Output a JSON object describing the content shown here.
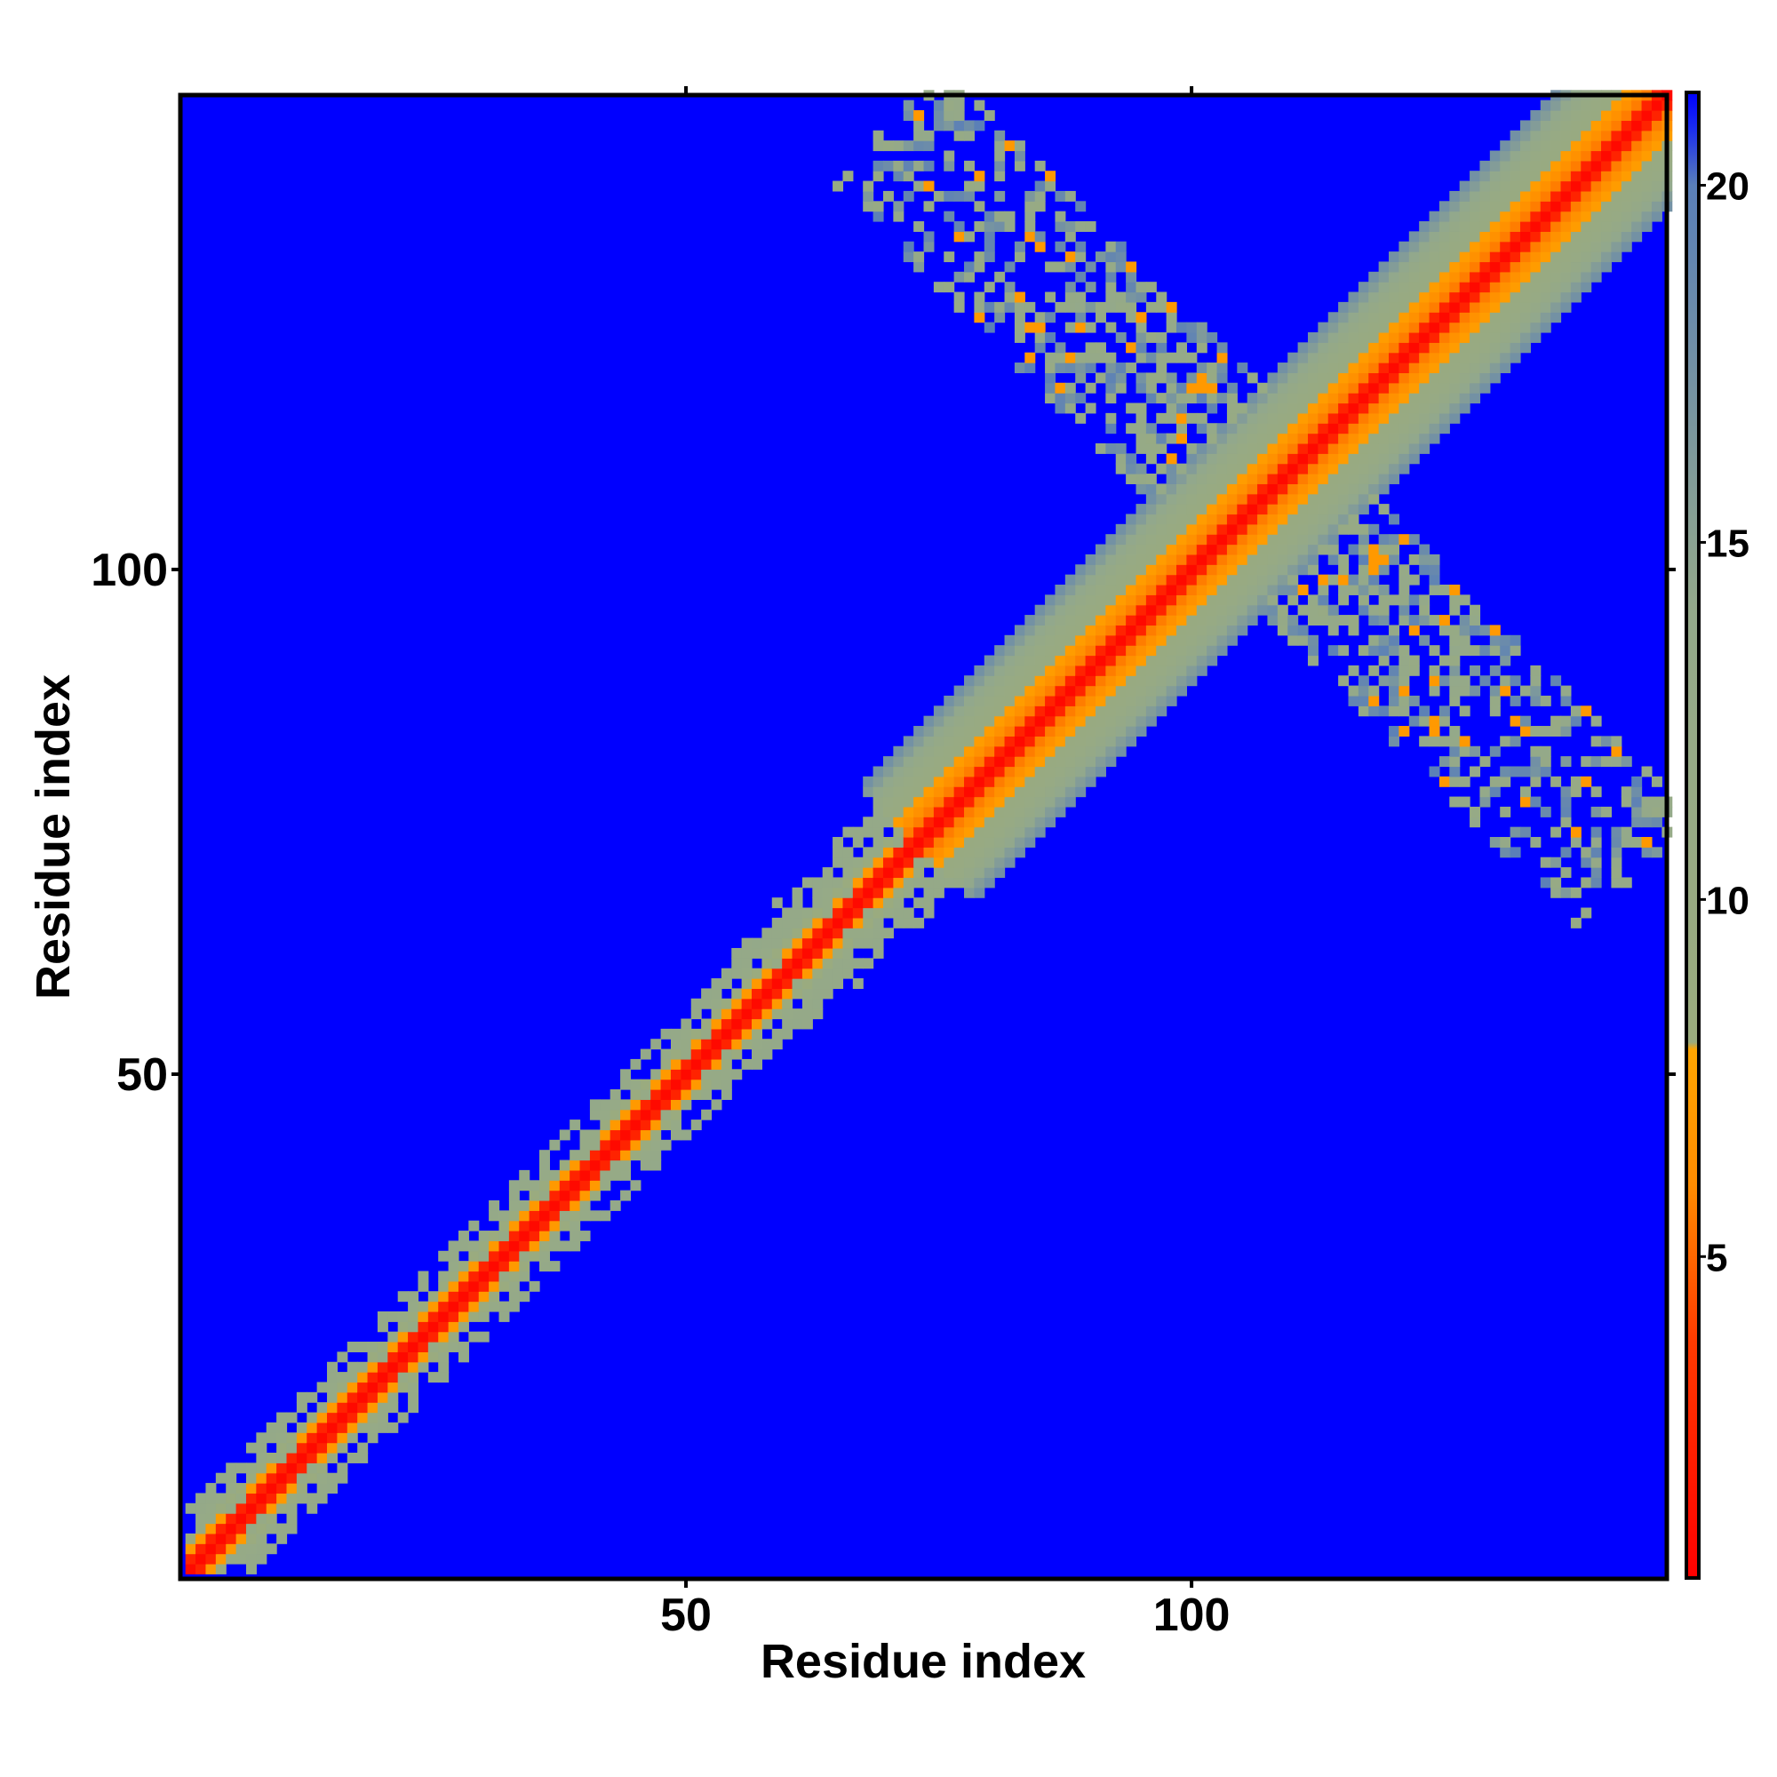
{
  "chart_data": {
    "type": "heatmap",
    "xlabel": "Residue index",
    "ylabel": "Residue index",
    "n_residues": 147,
    "xlim": [
      1,
      147
    ],
    "ylim": [
      1,
      147
    ],
    "x_ticks": [
      50,
      100
    ],
    "y_ticks": [
      50,
      100
    ],
    "colorbar": {
      "ticks": [
        5,
        10,
        15,
        20
      ],
      "range": [
        0.5,
        21.3
      ],
      "stops": [
        {
          "value": 0.5,
          "color": "#ff0000"
        },
        {
          "value": 3.8,
          "color": "#ff3a00"
        },
        {
          "value": 6.0,
          "color": "#ff8c00"
        },
        {
          "value": 7.9,
          "color": "#ffa500"
        },
        {
          "value": 8.0,
          "color": "#9aab7e"
        },
        {
          "value": 14.0,
          "color": "#94a98a"
        },
        {
          "value": 20.0,
          "color": "#5a7fb8"
        },
        {
          "value": 20.8,
          "color": "#1a2cf0"
        },
        {
          "value": 21.3,
          "color": "#0000ff"
        }
      ]
    },
    "description_values": {
      "background_distance": 21,
      "diagonal_distance": 1,
      "features": [
        {
          "segment_residues": [
            1,
            74
          ],
          "band_halfwidth": 5,
          "pattern": "narrow speckled band"
        },
        {
          "segment_residues": [
            63,
            147
          ],
          "band_halfwidth": 11,
          "pattern": "wide smooth band"
        },
        {
          "crossing_center_residue": 107,
          "pattern": "anti-diagonal speckled contacts",
          "extent_residues": [
            70,
            145
          ]
        }
      ]
    },
    "grid": false,
    "legend": "colorbar right"
  }
}
